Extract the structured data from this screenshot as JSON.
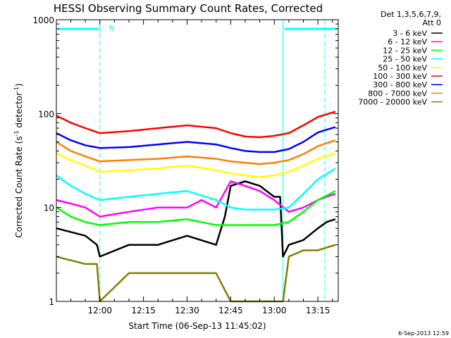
{
  "chart_data": {
    "type": "line",
    "title": "HESSI Observing Summary Count Rates, Corrected",
    "xlabel": "Start Time (06-Sep-13 11:45:02)",
    "ylabel": "Corrected Count Rate (s⁻¹ detector⁻¹)",
    "ylabel_parts": {
      "a": "Corrected Count Rate (s",
      "sup1": "-1",
      "b": " detector",
      "sup2": "-1",
      "c": ")"
    },
    "y_scale": "log",
    "ylim": [
      1,
      1000
    ],
    "xlim": [
      "11:45:02",
      "13:22:00"
    ],
    "x_ticks": [
      "12:00",
      "12:15",
      "12:30",
      "12:45",
      "13:00",
      "13:15"
    ],
    "y_ticks": [
      "1",
      "10",
      "100",
      "1000"
    ],
    "legend": {
      "position": "right",
      "header": [
        "Det 1,3,5,6,7,9,",
        "Att 0"
      ]
    },
    "annotations": {
      "night_marker": "N",
      "timestamp": "6-Sep-2013 12:59"
    },
    "night_intervals": [
      [
        "11:45:02",
        "12:00"
      ],
      [
        "13:03",
        "13:22:00"
      ]
    ],
    "series": [
      {
        "name": "3 - 6 keV",
        "color": "#000000",
        "x": [
          "11:45",
          "11:55",
          "11:59",
          "12:00",
          "12:10",
          "12:20",
          "12:30",
          "12:40",
          "12:43",
          "12:45",
          "12:50",
          "12:55",
          "13:00",
          "13:02",
          "13:03",
          "13:05",
          "13:10",
          "13:15",
          "13:18",
          "13:21"
        ],
        "y": [
          6,
          5,
          4,
          3,
          4,
          4,
          5,
          4,
          8,
          17,
          19,
          17,
          13,
          13,
          3,
          4,
          4.5,
          6,
          7,
          7.5
        ]
      },
      {
        "name": "6 - 12 keV",
        "color": "#ff00ff",
        "x": [
          "11:45",
          "11:50",
          "11:55",
          "12:00",
          "12:10",
          "12:20",
          "12:30",
          "12:35",
          "12:40",
          "12:45",
          "12:50",
          "12:55",
          "13:00",
          "13:05",
          "13:10",
          "13:15",
          "13:18",
          "13:21"
        ],
        "y": [
          12,
          11,
          10,
          8,
          9,
          10,
          10,
          12,
          10,
          19,
          17,
          15,
          12,
          9,
          10,
          12,
          13,
          14
        ]
      },
      {
        "name": "12 - 25 keV",
        "color": "#00ff00",
        "x": [
          "11:45",
          "11:50",
          "11:55",
          "12:00",
          "12:10",
          "12:20",
          "12:30",
          "12:40",
          "12:45",
          "12:50",
          "12:55",
          "13:00",
          "13:05",
          "13:10",
          "13:15",
          "13:21"
        ],
        "y": [
          10,
          8,
          7,
          6.5,
          7,
          7,
          7.5,
          6.5,
          6.5,
          6.5,
          6.5,
          6.5,
          7,
          9,
          12,
          15
        ]
      },
      {
        "name": "25 - 50 keV",
        "color": "#00ffff",
        "x": [
          "11:45",
          "11:50",
          "11:55",
          "12:00",
          "12:10",
          "12:20",
          "12:30",
          "12:40",
          "12:45",
          "12:50",
          "12:55",
          "13:00",
          "13:05",
          "13:10",
          "13:15",
          "13:21"
        ],
        "y": [
          22,
          17,
          14,
          12,
          13,
          14,
          15,
          12,
          10,
          9.5,
          9.5,
          9.5,
          10,
          14,
          20,
          26
        ]
      },
      {
        "name": "50 - 100 keV",
        "color": "#ffff00",
        "x": [
          "11:45",
          "11:50",
          "11:55",
          "12:00",
          "12:10",
          "12:20",
          "12:30",
          "12:40",
          "12:45",
          "12:50",
          "12:55",
          "13:00",
          "13:05",
          "13:10",
          "13:15",
          "13:21"
        ],
        "y": [
          38,
          32,
          28,
          24,
          25,
          26,
          28,
          25,
          23,
          22,
          21,
          22,
          24,
          28,
          33,
          38
        ]
      },
      {
        "name": "100 - 300 keV",
        "color": "#ff0000",
        "x": [
          "11:45",
          "11:50",
          "11:55",
          "12:00",
          "12:10",
          "12:20",
          "12:30",
          "12:40",
          "12:45",
          "12:50",
          "12:55",
          "13:00",
          "13:05",
          "13:10",
          "13:15",
          "13:21"
        ],
        "y": [
          95,
          80,
          70,
          62,
          65,
          70,
          75,
          70,
          62,
          57,
          56,
          58,
          62,
          75,
          92,
          105
        ]
      },
      {
        "name": "300 - 800 keV",
        "color": "#0000ff",
        "x": [
          "11:45",
          "11:50",
          "11:55",
          "12:00",
          "12:10",
          "12:20",
          "12:30",
          "12:40",
          "12:45",
          "12:50",
          "12:55",
          "13:00",
          "13:05",
          "13:10",
          "13:15",
          "13:21"
        ],
        "y": [
          62,
          52,
          46,
          43,
          44,
          47,
          50,
          47,
          43,
          40,
          39,
          39,
          42,
          50,
          63,
          72
        ]
      },
      {
        "name": "800 - 7000 keV",
        "color": "#ff8000",
        "x": [
          "11:45",
          "11:50",
          "11:55",
          "12:00",
          "12:10",
          "12:20",
          "12:30",
          "12:40",
          "12:45",
          "12:50",
          "12:55",
          "13:00",
          "13:05",
          "13:10",
          "13:15",
          "13:21"
        ],
        "y": [
          50,
          40,
          35,
          31,
          32,
          33,
          35,
          33,
          31,
          30,
          29,
          30,
          32,
          37,
          45,
          52
        ]
      },
      {
        "name": "7000 - 20000 keV",
        "color": "#808000",
        "x": [
          "11:45",
          "11:55",
          "11:59",
          "12:00",
          "12:10",
          "12:20",
          "12:30",
          "12:40",
          "12:45",
          "12:50",
          "13:00",
          "13:03",
          "13:05",
          "13:10",
          "13:15",
          "13:21"
        ],
        "y": [
          3,
          2.5,
          2.5,
          1,
          2,
          2,
          2,
          2,
          1,
          1,
          1,
          1,
          3,
          3.5,
          3.5,
          4
        ]
      }
    ]
  }
}
